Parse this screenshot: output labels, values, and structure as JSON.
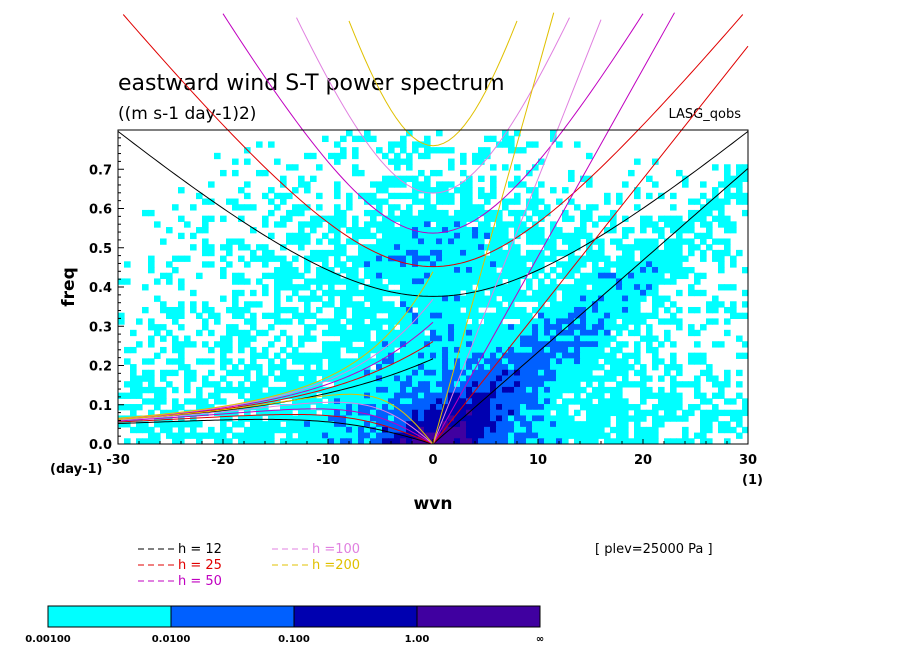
{
  "chart_data": {
    "type": "heatmap",
    "title": "eastward wind S-T power spectrum",
    "subtitle": "((m s-1 day-1)2)",
    "source_label": "LASG_qobs",
    "xlabel": "wvn",
    "ylabel": "freq",
    "x_unit": "(1)",
    "y_unit": "(day-1)",
    "xlim": [
      -30,
      30
    ],
    "ylim": [
      0,
      0.8
    ],
    "x_ticks": [
      "-30",
      "-20",
      "-10",
      "0",
      "10",
      "20",
      "30"
    ],
    "y_ticks": [
      "0.0",
      "0.1",
      "0.2",
      "0.3",
      "0.4",
      "0.5",
      "0.6",
      "0.7"
    ],
    "annotation": "[ plev=25000 Pa ]",
    "dispersion_curves": [
      {
        "label": "h = 12",
        "color": "#000000",
        "depth": 12
      },
      {
        "label": "h = 25",
        "color": "#e00000",
        "depth": 25
      },
      {
        "label": "h = 50",
        "color": "#c000c0",
        "depth": 50
      },
      {
        "label": "h =100",
        "color": "#e080e0",
        "depth": 100
      },
      {
        "label": "h =200",
        "color": "#e0c000",
        "depth": 200
      }
    ],
    "colorbar": {
      "levels": [
        "0.00100",
        "0.0100",
        "0.100",
        "1.00",
        "∞"
      ],
      "colors": [
        "#00ffff",
        "#0060ff",
        "#0000b0",
        "#4000a0"
      ]
    }
  }
}
